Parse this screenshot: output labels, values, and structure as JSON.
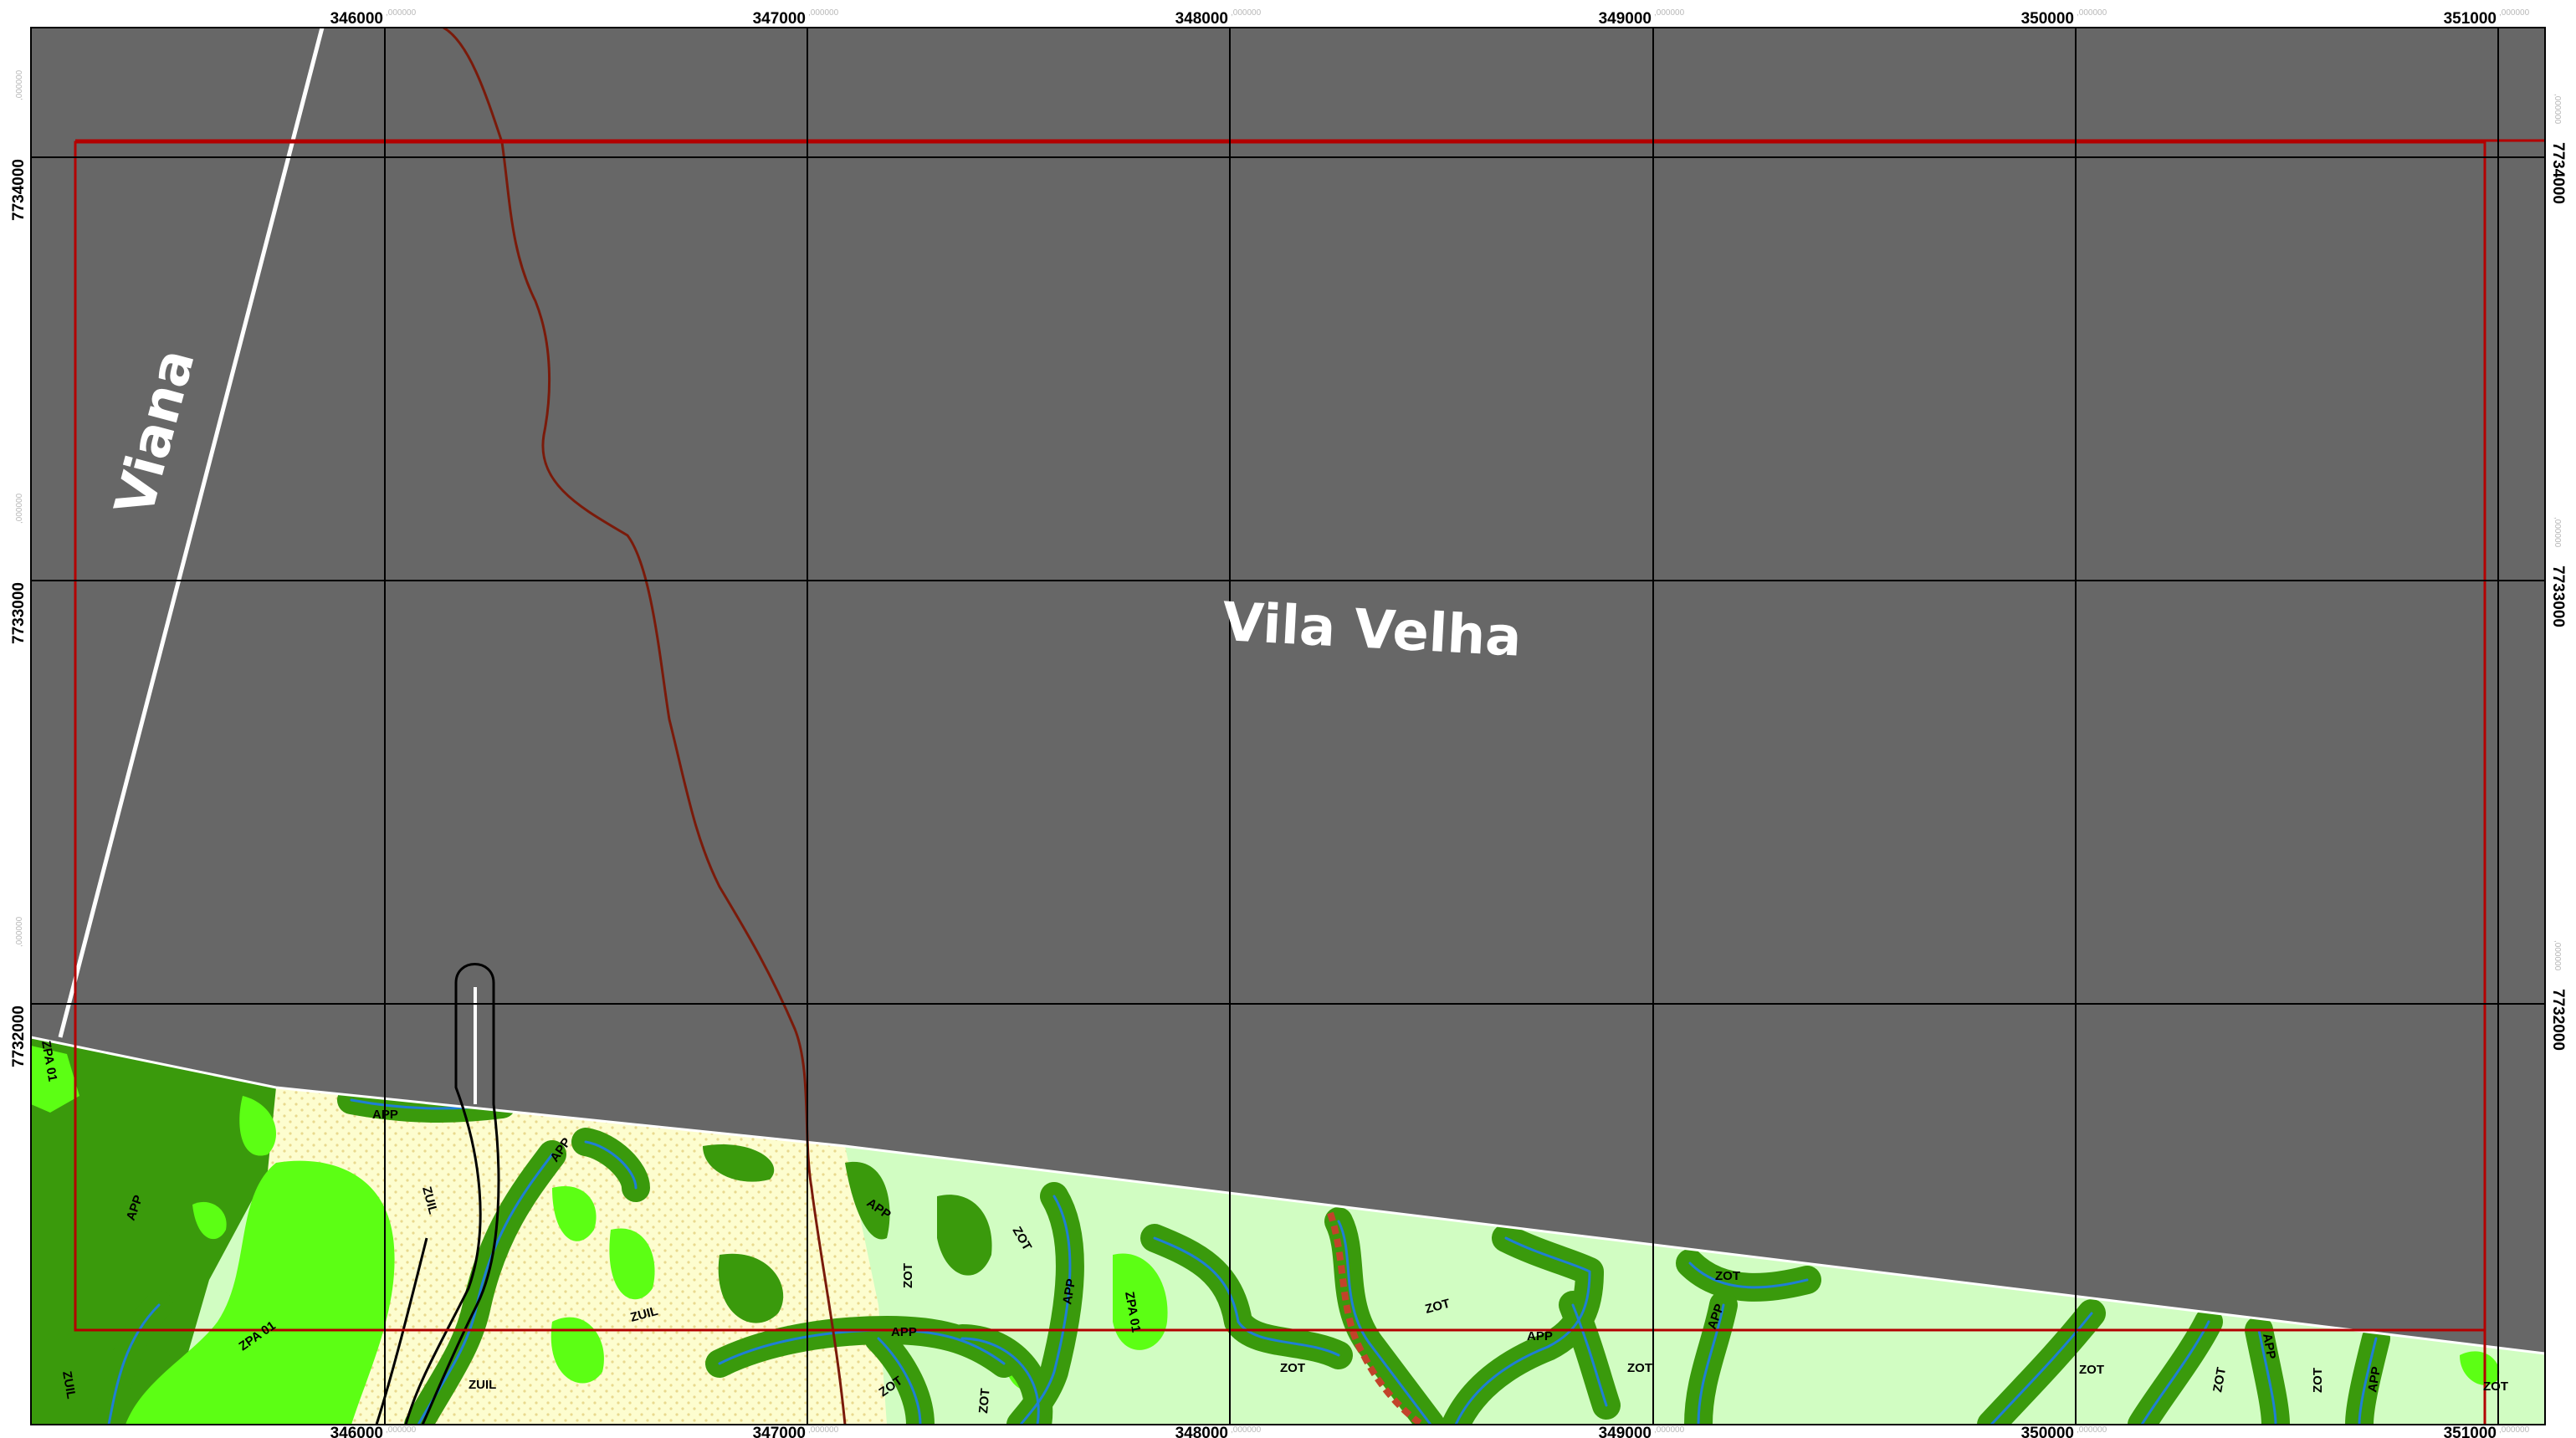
{
  "map": {
    "places": [
      "Viana",
      "Vila Velha"
    ],
    "eastings": [
      "346000",
      "347000",
      "348000",
      "349000",
      "350000",
      "351000"
    ],
    "northings": [
      "7734000",
      "7733000",
      "7732000"
    ],
    "coord_suffix": ",000000",
    "zone_labels": [
      "ZPA 01",
      "APP",
      "ZUIL",
      "APP",
      "ZUIL",
      "APP",
      "ZPA 01",
      "ZUIL",
      "ZUIL",
      "APP",
      "ZOT",
      "APP",
      "ZOT",
      "APP",
      "ZPA 01",
      "ZOT",
      "ZOT",
      "ZOT",
      "ZOT",
      "APP",
      "ZOT",
      "ZOT",
      "APP",
      "ZOT",
      "ZOT",
      "APP",
      "ZOT",
      "APP",
      "ZOT"
    ],
    "colors": {
      "urban_gray": "#676767",
      "zpa_dark_green": "#3a9a0c",
      "zpa_bright_green": "#5cff14",
      "zuil_cream": "#fdfdcf",
      "zot_pale_green": "#d1fdc2",
      "app_buffer": "#3a9a0c",
      "stream": "#1f7fd4",
      "study_area_border": "#b30000",
      "municipal_boundary": "#ffffff",
      "road_line": "#7a1a0a"
    }
  }
}
